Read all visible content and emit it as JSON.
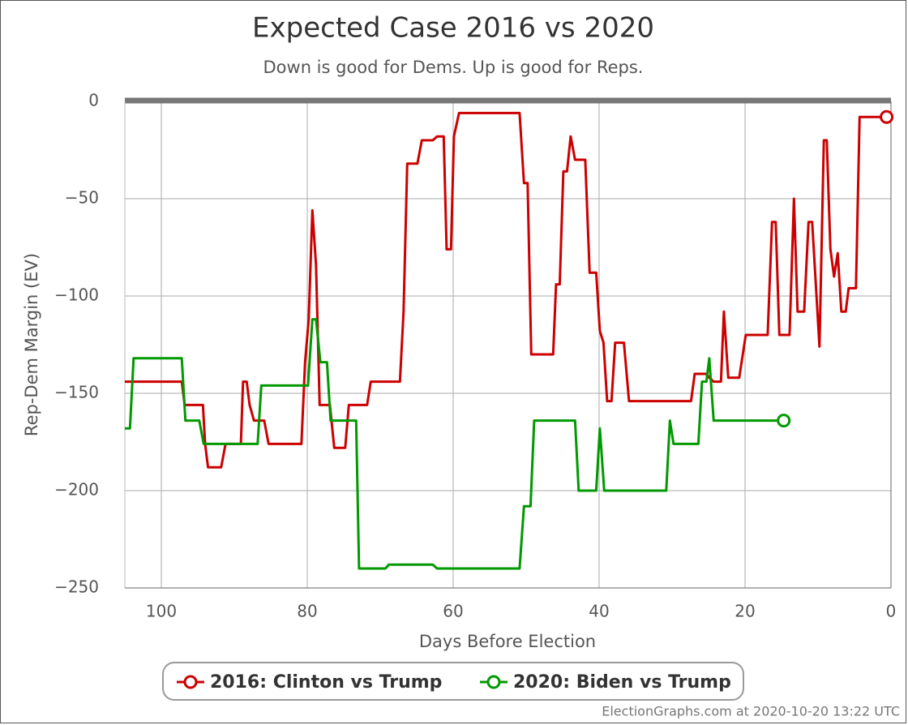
{
  "chart_data": {
    "type": "line",
    "title": "Expected Case 2016 vs 2020",
    "subtitle": "Down is good for Dems. Up is good for Reps.",
    "x_label": "Days Before Election",
    "y_label": "Rep-Dem Margin (EV)",
    "footer": "ElectionGraphs.com at 2020-10-20 13:22 UTC",
    "xlim": [
      105,
      0
    ],
    "ylim": [
      -250,
      0
    ],
    "xticks": [
      100,
      80,
      60,
      40,
      20,
      0
    ],
    "yticks": [
      0,
      {
        "value": -50,
        "label": "−50"
      },
      {
        "value": -100,
        "label": "−100"
      },
      {
        "value": -150,
        "label": "−150"
      },
      {
        "value": -200,
        "label": "−200"
      },
      {
        "value": -250,
        "label": "−250"
      }
    ],
    "grid": true,
    "legend": "bottom",
    "series": [
      {
        "name": "2016: Clinton vs Trump",
        "color": "#cc0000",
        "x": [
          105,
          97.2,
          96.8,
          94.3,
          94,
          93.6,
          91.8,
          91.2,
          89.1,
          88.8,
          88.3,
          87.9,
          87.3,
          85.9,
          85.3,
          80.8,
          80.3,
          79.8,
          79.3,
          78.8,
          78.3,
          76.9,
          76.3,
          74.8,
          74.3,
          71.8,
          71.3,
          67.3,
          66.8,
          66.3,
          64.9,
          64.3,
          62.8,
          62.2,
          61.3,
          60.9,
          60.3,
          59.9,
          59.2,
          50.9,
          50.3,
          49.8,
          49.3,
          46.3,
          45.9,
          45.4,
          44.9,
          44.4,
          43.9,
          43.3,
          41.9,
          41.3,
          40.4,
          39.9,
          39.4,
          38.9,
          38.3,
          37.8,
          36.6,
          35.9,
          27.4,
          26.9,
          25.3,
          24.9,
          24.3,
          23.3,
          22.9,
          22.3,
          20.8,
          19.9,
          16.9,
          16.3,
          15.8,
          15.3,
          13.9,
          13.3,
          12.8,
          11.9,
          11.3,
          10.8,
          9.8,
          9.2,
          8.8,
          8.3,
          7.8,
          7.3,
          6.8,
          6.2,
          5.8,
          4.8,
          4.3,
          0.6
        ],
        "values": [
          -144,
          -144,
          -156,
          -156,
          -176,
          -188,
          -188,
          -176,
          -176,
          -144,
          -144,
          -156,
          -164,
          -164,
          -176,
          -176,
          -134,
          -112,
          -56,
          -84,
          -156,
          -156,
          -178,
          -178,
          -156,
          -156,
          -144,
          -144,
          -108,
          -32,
          -32,
          -20,
          -20,
          -18,
          -18,
          -76,
          -76,
          -18,
          -6,
          -6,
          -42,
          -42,
          -130,
          -130,
          -94,
          -94,
          -36,
          -36,
          -18,
          -30,
          -30,
          -88,
          -88,
          -118,
          -124,
          -154,
          -154,
          -124,
          -124,
          -154,
          -154,
          -140,
          -140,
          -142,
          -144,
          -144,
          -108,
          -142,
          -142,
          -120,
          -120,
          -62,
          -62,
          -120,
          -120,
          -50,
          -108,
          -108,
          -62,
          -62,
          -126,
          -20,
          -20,
          -76,
          -90,
          -78,
          -108,
          -108,
          -96,
          -96,
          -8,
          -8
        ]
      },
      {
        "name": "2020: Biden vs Trump",
        "color": "#009900",
        "x": [
          105,
          104.3,
          103.8,
          97.2,
          96.7,
          94.8,
          94.2,
          86.8,
          86.3,
          79.9,
          79.3,
          78.8,
          78.2,
          77.3,
          76.8,
          73.3,
          72.9,
          69.3,
          68.8,
          62.8,
          62.2,
          50.9,
          50.3,
          49.4,
          48.9,
          43.3,
          42.8,
          40.4,
          39.9,
          39.3,
          30.8,
          30.3,
          29.8,
          26.4,
          25.9,
          25.3,
          24.9,
          24.3,
          14.7
        ],
        "values": [
          -168,
          -168,
          -132,
          -132,
          -164,
          -164,
          -176,
          -176,
          -146,
          -146,
          -112,
          -112,
          -134,
          -134,
          -164,
          -164,
          -240,
          -240,
          -238,
          -238,
          -240,
          -240,
          -208,
          -208,
          -164,
          -164,
          -200,
          -200,
          -168,
          -200,
          -200,
          -164,
          -176,
          -176,
          -144,
          -144,
          -132,
          -164,
          -164
        ]
      }
    ]
  }
}
